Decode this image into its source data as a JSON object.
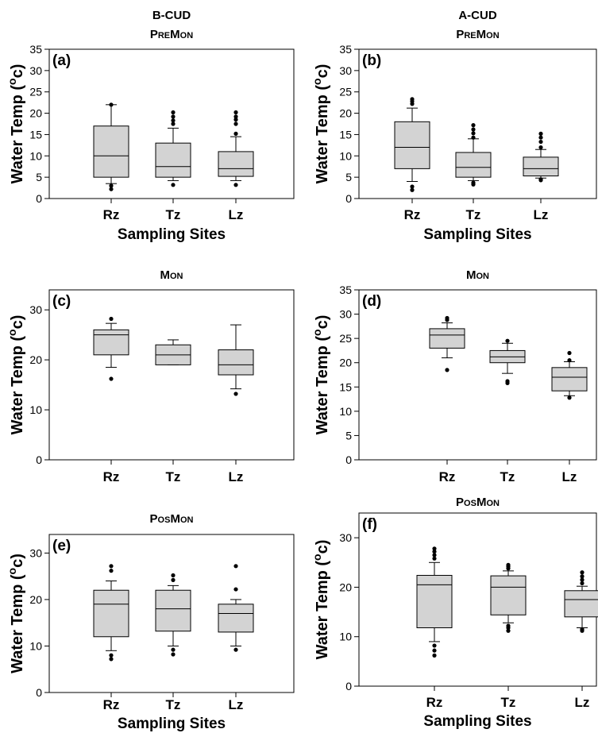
{
  "figure": {
    "type": "box-plot grid"
  },
  "chart_data": [
    {
      "type": "box",
      "panel": "(a)",
      "title_line1": "B-CUD",
      "title_parts": [
        [
          "P",
          "big"
        ],
        [
          "RE",
          "small"
        ],
        [
          "M",
          "big"
        ],
        [
          "ON",
          "small"
        ]
      ],
      "ylabel": "Water Temp (",
      "ylabel_sup": "o",
      "ylabel_unit": "c)",
      "ylabel_end": ")",
      "xlabel": "Sampling Sites",
      "ylim": [
        0,
        35
      ],
      "yticks": [
        "0",
        "5",
        "10",
        "15",
        "20",
        "25",
        "30",
        "35"
      ],
      "categories": [
        "Rz",
        "Tz",
        "Lz"
      ],
      "boxes": [
        {
          "q1": 5,
          "median": 10,
          "q3": 17,
          "whisker_low": 3.5,
          "whisker_high": 22,
          "outliers": [
            3,
            2.2,
            22
          ]
        },
        {
          "q1": 5,
          "median": 7.5,
          "q3": 13,
          "whisker_low": 4.2,
          "whisker_high": 16.5,
          "outliers": [
            3.2,
            17.5,
            18.3,
            19.2,
            20.2
          ]
        },
        {
          "q1": 5.2,
          "median": 7,
          "q3": 11,
          "whisker_low": 4.2,
          "whisker_high": 14.5,
          "outliers": [
            3.2,
            15.2,
            17.5,
            18.5,
            19.2,
            20.2
          ]
        }
      ]
    },
    {
      "type": "box",
      "panel": "(b)",
      "title_line1": "A-CUD",
      "title_parts": [
        [
          "P",
          "big"
        ],
        [
          "RE",
          "small"
        ],
        [
          "M",
          "big"
        ],
        [
          "ON",
          "small"
        ]
      ],
      "ylabel": "Water Temp (",
      "ylabel_sup": "o",
      "ylabel_unit": "c)",
      "xlabel": "Sampling Sites",
      "ylim": [
        0,
        35
      ],
      "yticks": [
        "0",
        "5",
        "10",
        "15",
        "20",
        "25",
        "30",
        "35"
      ],
      "categories": [
        "Rz",
        "Tz",
        "Lz"
      ],
      "boxes": [
        {
          "q1": 7,
          "median": 12,
          "q3": 18,
          "whisker_low": 4,
          "whisker_high": 21.2,
          "outliers": [
            2.8,
            2,
            22.2,
            22.8,
            23.3
          ]
        },
        {
          "q1": 5,
          "median": 7.3,
          "q3": 10.8,
          "whisker_low": 4.2,
          "whisker_high": 14,
          "outliers": [
            3.3,
            3.7,
            14.3,
            15.3,
            16.2,
            17.2
          ]
        },
        {
          "q1": 5.3,
          "median": 7,
          "q3": 9.7,
          "whisker_low": 4.8,
          "whisker_high": 11.5,
          "outliers": [
            4.3,
            4.5,
            12,
            13.3,
            14.3,
            15.2
          ]
        }
      ]
    },
    {
      "type": "box",
      "panel": "(c)",
      "title_line1": "",
      "title_parts": [
        [
          "M",
          "big"
        ],
        [
          "ON",
          "small"
        ]
      ],
      "ylabel": "Water Temp (",
      "ylabel_sup": "o",
      "ylabel_unit": "c)",
      "xlabel": "",
      "ylim": [
        0,
        34
      ],
      "yticks": [
        "0",
        "10",
        "20",
        "30"
      ],
      "categories": [
        "Rz",
        "Tz",
        "Lz"
      ],
      "boxes": [
        {
          "q1": 21,
          "median": 25,
          "q3": 26,
          "whisker_low": 18.5,
          "whisker_high": 27.3,
          "outliers": [
            16.2,
            28.2
          ]
        },
        {
          "q1": 19,
          "median": 21,
          "q3": 23,
          "whisker_low": 19,
          "whisker_high": 24,
          "outliers": []
        },
        {
          "q1": 17,
          "median": 19,
          "q3": 22,
          "whisker_low": 14.2,
          "whisker_high": 27,
          "outliers": [
            13.2
          ]
        }
      ]
    },
    {
      "type": "box",
      "panel": "(d)",
      "title_line1": "",
      "title_parts": [
        [
          "M",
          "big"
        ],
        [
          "ON",
          "small"
        ]
      ],
      "ylabel": "Water Temp (",
      "ylabel_sup": "o",
      "ylabel_unit": "c)",
      "xlabel": "",
      "ylim": [
        0,
        35
      ],
      "yticks": [
        "0",
        "5",
        "10",
        "15",
        "20",
        "25",
        "30",
        "35"
      ],
      "categories": [
        "Rz",
        "Tz",
        "Lz"
      ],
      "boxes": [
        {
          "q1": 23,
          "median": 25.7,
          "q3": 27,
          "whisker_low": 21,
          "whisker_high": 28.2,
          "outliers": [
            18.5,
            28.8,
            29.2
          ]
        },
        {
          "q1": 20,
          "median": 21.2,
          "q3": 22.5,
          "whisker_low": 17.8,
          "whisker_high": 24,
          "outliers": [
            15.8,
            16.2,
            24.5
          ]
        },
        {
          "q1": 14.2,
          "median": 17,
          "q3": 19,
          "whisker_low": 13.2,
          "whisker_high": 20.2,
          "outliers": [
            12.8,
            20.5,
            22
          ]
        }
      ]
    },
    {
      "type": "box",
      "panel": "(e)",
      "title_line1": "",
      "title_parts": [
        [
          "P",
          "big"
        ],
        [
          "OS",
          "small"
        ],
        [
          "M",
          "big"
        ],
        [
          "ON",
          "small"
        ]
      ],
      "ylabel": "Water Temp (",
      "ylabel_sup": "o",
      "ylabel_unit": "c)",
      "xlabel": "Sampling Sites",
      "ylim": [
        0,
        34
      ],
      "yticks": [
        "0",
        "10",
        "20",
        "30"
      ],
      "categories": [
        "Rz",
        "Tz",
        "Lz"
      ],
      "boxes": [
        {
          "q1": 12,
          "median": 19,
          "q3": 22,
          "whisker_low": 9,
          "whisker_high": 24,
          "outliers": [
            7.2,
            8,
            26.2,
            27.2
          ]
        },
        {
          "q1": 13.2,
          "median": 18,
          "q3": 22,
          "whisker_low": 10,
          "whisker_high": 23,
          "outliers": [
            8.2,
            9.2,
            24.2,
            25.2
          ]
        },
        {
          "q1": 13,
          "median": 17,
          "q3": 19,
          "whisker_low": 10,
          "whisker_high": 20,
          "outliers": [
            9.2,
            22.2,
            27.2
          ]
        }
      ]
    },
    {
      "type": "box",
      "panel": "(f)",
      "title_line1": "",
      "title_parts": [
        [
          "P",
          "big"
        ],
        [
          "OS",
          "small"
        ],
        [
          "M",
          "big"
        ],
        [
          "ON",
          "small"
        ]
      ],
      "ylabel": "Water Temp (",
      "ylabel_sup": "o",
      "ylabel_unit": "c)",
      "xlabel": "Sampling Sites",
      "ylim": [
        0,
        35
      ],
      "yticks": [
        "0",
        "10",
        "20",
        "30"
      ],
      "categories": [
        "Rz",
        "Tz",
        "Lz"
      ],
      "boxes": [
        {
          "q1": 11.8,
          "median": 20.5,
          "q3": 22.4,
          "whisker_low": 9,
          "whisker_high": 25,
          "outliers": [
            6.2,
            7.2,
            8.2,
            25.8,
            26.5,
            27.2,
            27.8
          ]
        },
        {
          "q1": 14.4,
          "median": 20,
          "q3": 22.3,
          "whisker_low": 12.8,
          "whisker_high": 23.3,
          "outliers": [
            11.2,
            11.8,
            12.2,
            23.8,
            24.2,
            24.5
          ]
        },
        {
          "q1": 14,
          "median": 17.5,
          "q3": 19.3,
          "whisker_low": 11.8,
          "whisker_high": 20.2,
          "outliers": [
            11.2,
            11.5,
            20.8,
            21.5,
            22.2,
            23
          ]
        }
      ]
    }
  ]
}
